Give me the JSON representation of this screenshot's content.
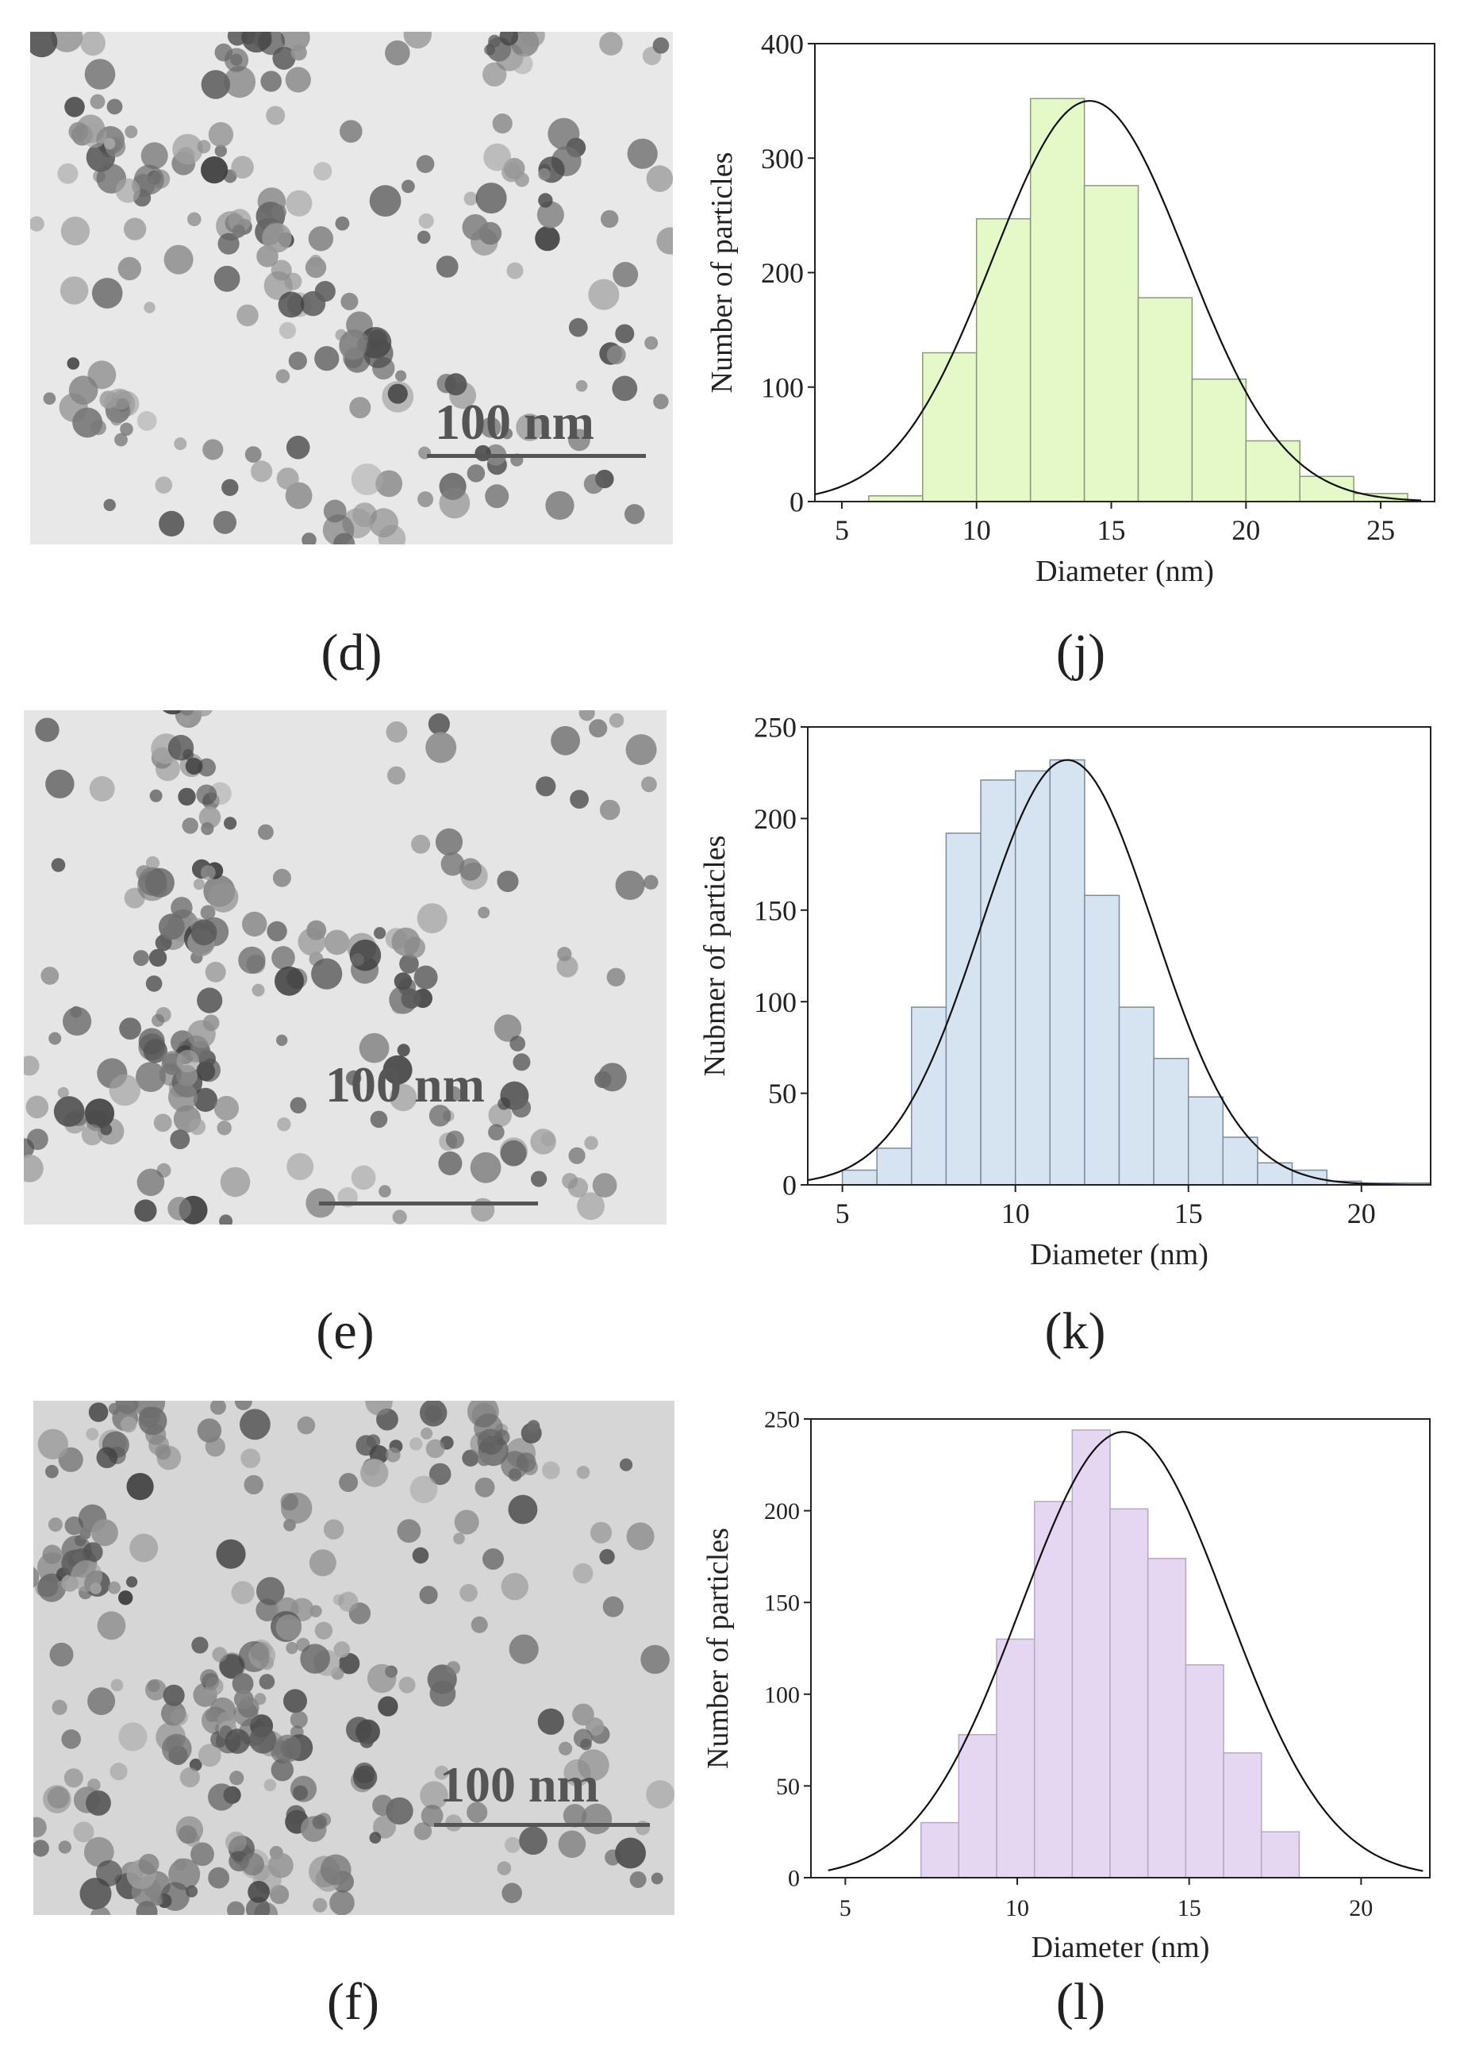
{
  "panels": {
    "d": {
      "label": "(d)",
      "scale_label": "100 nm"
    },
    "e": {
      "label": "(e)",
      "scale_label": "100 nm"
    },
    "f": {
      "label": "(f)",
      "scale_label": "100 nm"
    },
    "j": {
      "label": "(j)"
    },
    "k": {
      "label": "(k)"
    },
    "l": {
      "label": "(l)"
    }
  },
  "chart_data": [
    {
      "id": "j",
      "type": "bar",
      "fill_color": "#e4f8c8",
      "edge_color": "#8a9a78",
      "bins": [
        [
          6,
          8
        ],
        [
          8,
          10
        ],
        [
          10,
          12
        ],
        [
          12,
          14
        ],
        [
          14,
          16
        ],
        [
          16,
          18
        ],
        [
          18,
          20
        ],
        [
          20,
          22
        ],
        [
          22,
          24
        ],
        [
          24,
          26
        ]
      ],
      "values": [
        5,
        130,
        247,
        352,
        276,
        178,
        107,
        53,
        22,
        7
      ],
      "fit": {
        "type": "gaussian",
        "mean": 14.2,
        "sd": 3.6,
        "peak": 350,
        "range": [
          4,
          26.5
        ]
      },
      "xlabel": "Diameter (nm)",
      "ylabel": "Number of particles",
      "xlim": [
        4,
        27
      ],
      "ylim": [
        0,
        400
      ],
      "xticks": [
        5,
        10,
        15,
        20,
        25
      ],
      "yticks": [
        0,
        100,
        200,
        300,
        400
      ]
    },
    {
      "id": "k",
      "type": "bar",
      "fill_color": "#d6e4f1",
      "edge_color": "#7d8c9c",
      "bins": [
        [
          5,
          6
        ],
        [
          6,
          7
        ],
        [
          7,
          8
        ],
        [
          8,
          9
        ],
        [
          9,
          10
        ],
        [
          10,
          11
        ],
        [
          11,
          12
        ],
        [
          12,
          13
        ],
        [
          13,
          14
        ],
        [
          14,
          15
        ],
        [
          15,
          16
        ],
        [
          16,
          17
        ],
        [
          17,
          18
        ],
        [
          18,
          19
        ],
        [
          19,
          20
        ],
        [
          20,
          21
        ],
        [
          21,
          22
        ]
      ],
      "values": [
        8,
        20,
        97,
        192,
        221,
        226,
        232,
        158,
        97,
        69,
        48,
        26,
        12,
        8,
        2,
        1,
        1
      ],
      "fit": {
        "type": "gaussian",
        "mean": 11.5,
        "sd": 2.5,
        "peak": 232,
        "range": [
          4,
          22
        ]
      },
      "xlabel": "Diameter (nm)",
      "ylabel": "Nubmer of particles",
      "xlim": [
        4,
        22
      ],
      "ylim": [
        0,
        250
      ],
      "xticks": [
        5,
        10,
        15,
        20
      ],
      "yticks": [
        0,
        50,
        100,
        150,
        200,
        250
      ]
    },
    {
      "id": "l",
      "type": "bar",
      "fill_color": "#e5d6f1",
      "edge_color": "#b7a7c8",
      "bins": [
        [
          7.2,
          8.3
        ],
        [
          8.3,
          9.4
        ],
        [
          9.4,
          10.5
        ],
        [
          10.5,
          11.6
        ],
        [
          11.6,
          12.7
        ],
        [
          12.7,
          13.8
        ],
        [
          13.8,
          14.9
        ],
        [
          14.9,
          16
        ],
        [
          16,
          17.1
        ],
        [
          17.1,
          18.2
        ],
        [
          18.2,
          19.3
        ]
      ],
      "values": [
        30,
        78,
        130,
        205,
        244,
        201,
        174,
        116,
        68,
        25,
        0
      ],
      "fit": {
        "type": "gaussian",
        "mean": 13.1,
        "sd": 3.0,
        "peak": 243,
        "range": [
          4.5,
          21.8
        ]
      },
      "xlabel": "Diameter (nm)",
      "ylabel": "Number of particles",
      "xlim": [
        4,
        22
      ],
      "ylim": [
        0,
        250
      ],
      "xticks": [
        5,
        10,
        15,
        20
      ],
      "yticks": [
        0,
        50,
        100,
        150,
        200,
        250
      ]
    }
  ]
}
